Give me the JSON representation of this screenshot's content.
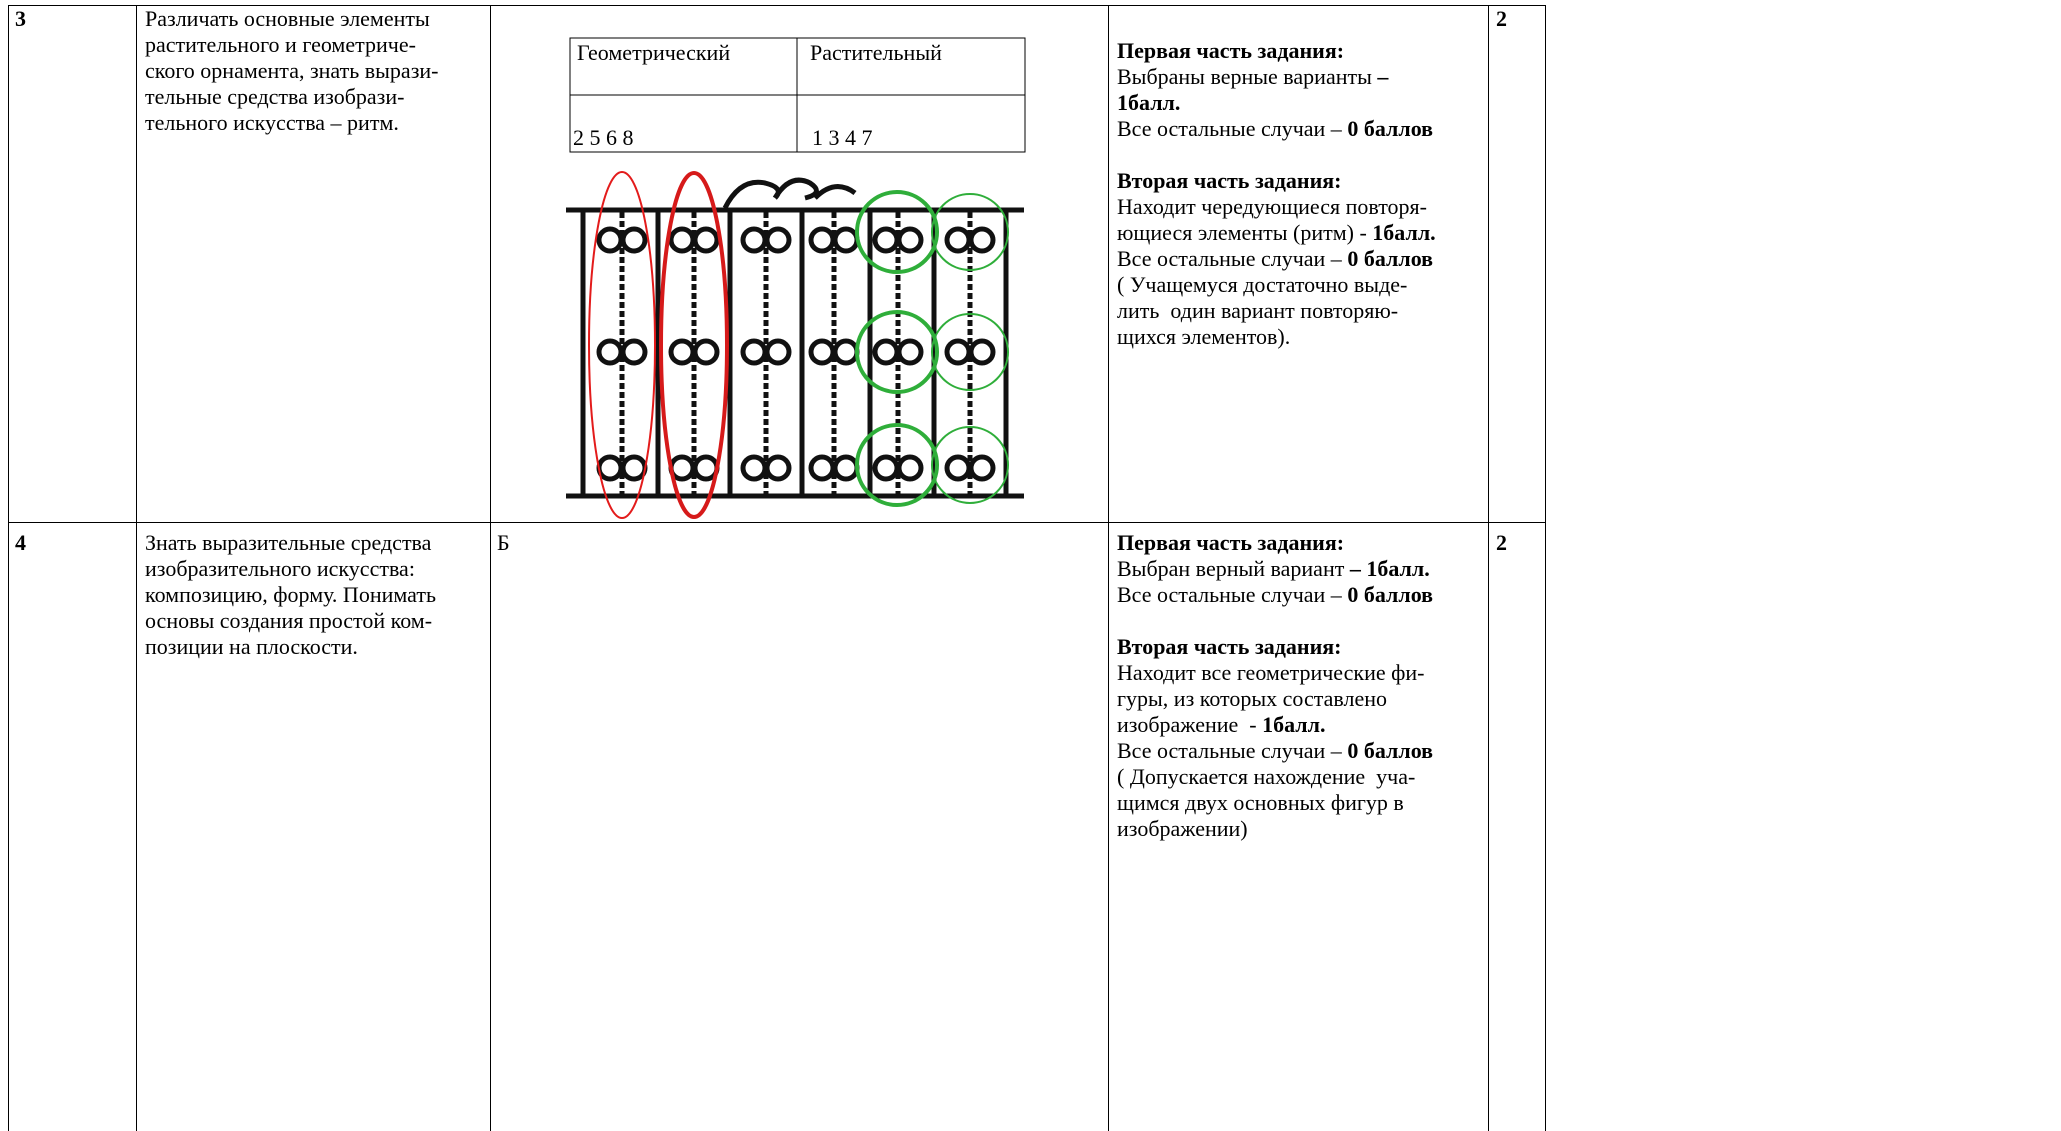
{
  "table": {
    "rows": [
      {
        "number": "3",
        "goal": [
          "Различать основные элементы",
          "растительного и геометриче-",
          "ского орнамента, знать вырази-",
          "тельные средства изобрази-",
          "тельного искусства – ритм."
        ],
        "answer": {
          "table": {
            "header": [
              "Геометрический",
              "Растительный"
            ],
            "row": [
              "2 5 6 8",
              "1 3 4 7"
            ]
          }
        },
        "criteria": [
          [
            [
              {
                "text": "Первая часть задания:",
                "bold": true
              }
            ],
            [
              {
                "text": "Выбраны верные варианты ",
                "bold": false
              },
              {
                "text": "–",
                "bold": true
              }
            ],
            [
              {
                "text": "1балл.",
                "bold": true
              }
            ],
            [
              {
                "text": "Все остальные случаи – ",
                "bold": false
              },
              {
                "text": "0 баллов",
                "bold": true
              }
            ]
          ],
          [
            [
              {
                "text": "Вторая часть задания:",
                "bold": true
              }
            ],
            [
              {
                "text": "Находит чередующиеся повторя-",
                "bold": false
              }
            ],
            [
              {
                "text": "ющиеся элементы (ритм) - ",
                "bold": false
              },
              {
                "text": "1балл.",
                "bold": true
              }
            ],
            [
              {
                "text": "Все остальные случаи – ",
                "bold": false
              },
              {
                "text": "0 баллов",
                "bold": true
              }
            ],
            [
              {
                "text": "( Учащемуся достаточно выде-",
                "bold": false
              }
            ],
            [
              {
                "text": "лить  один вариант повторяю-",
                "bold": false
              }
            ],
            [
              {
                "text": "щихся элементов).",
                "bold": false
              }
            ]
          ]
        ],
        "points": "2"
      },
      {
        "number": "4",
        "goal": [
          "Знать выразительные средства",
          "изобразительного искусства:",
          "композицию, форму. Понимать",
          "основы создания простой ком-",
          "позиции на плоскости."
        ],
        "answer": {
          "text": "Б"
        },
        "criteria": [
          [
            [
              {
                "text": "Первая часть задания:",
                "bold": true
              }
            ],
            [
              {
                "text": "Выбран верный вариант ",
                "bold": false
              },
              {
                "text": "– 1балл.",
                "bold": true
              }
            ],
            [
              {
                "text": "Все остальные случаи – ",
                "bold": false
              },
              {
                "text": "0 баллов",
                "bold": true
              }
            ]
          ],
          [
            [
              {
                "text": "Вторая часть задания:",
                "bold": true
              }
            ],
            [
              {
                "text": "Находит все геометрические фи-",
                "bold": false
              }
            ],
            [
              {
                "text": "гуры, из которых составлено",
                "bold": false
              }
            ],
            [
              {
                "text": "изображение  - ",
                "bold": false
              },
              {
                "text": "1балл.",
                "bold": true
              }
            ],
            [
              {
                "text": "Все остальные случаи – ",
                "bold": false
              },
              {
                "text": "0 баллов",
                "bold": true
              }
            ],
            [
              {
                "text": "( Допускается нахождение  уча-",
                "bold": false
              }
            ],
            [
              {
                "text": "щимся двух основных фигур в",
                "bold": false
              }
            ],
            [
              {
                "text": "изображении)",
                "bold": false
              }
            ]
          ]
        ],
        "points": "2"
      }
    ]
  }
}
